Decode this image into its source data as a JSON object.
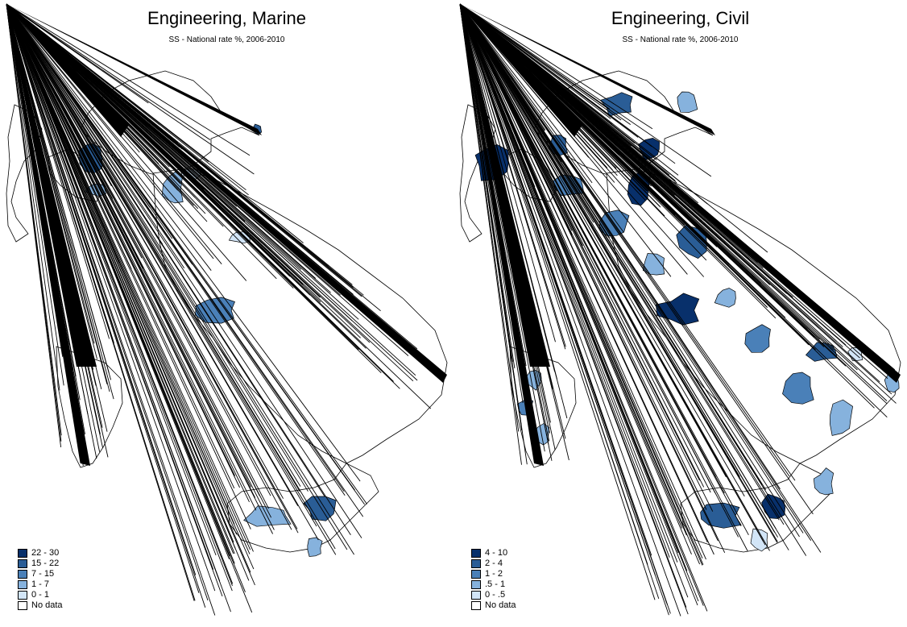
{
  "maps": [
    {
      "title": "Engineering, Marine",
      "subtitle": "SS - National rate %, 2006-2010",
      "legend": [
        {
          "label": "22 - 30",
          "color": "#08306b"
        },
        {
          "label": "15 - 22",
          "color": "#2a5d96"
        },
        {
          "label": "7 - 15",
          "color": "#4a80b8"
        },
        {
          "label": "1 - 7",
          "color": "#86b2dd"
        },
        {
          "label": "0 - 1",
          "color": "#d2e5f7"
        },
        {
          "label": "No data",
          "color": "#ffffff"
        }
      ]
    },
    {
      "title": "Engineering, Civil",
      "subtitle": "SS - National rate %, 2006-2010",
      "legend": [
        {
          "label": "4 - 10",
          "color": "#08306b"
        },
        {
          "label": "2 - 4",
          "color": "#2a5d96"
        },
        {
          "label": "1 - 2",
          "color": "#4a80b8"
        },
        {
          "label": ".5 - 1",
          "color": "#86b2dd"
        },
        {
          "label": "0 - .5",
          "color": "#d2e5f7"
        },
        {
          "label": "No data",
          "color": "#ffffff"
        }
      ]
    }
  ]
}
